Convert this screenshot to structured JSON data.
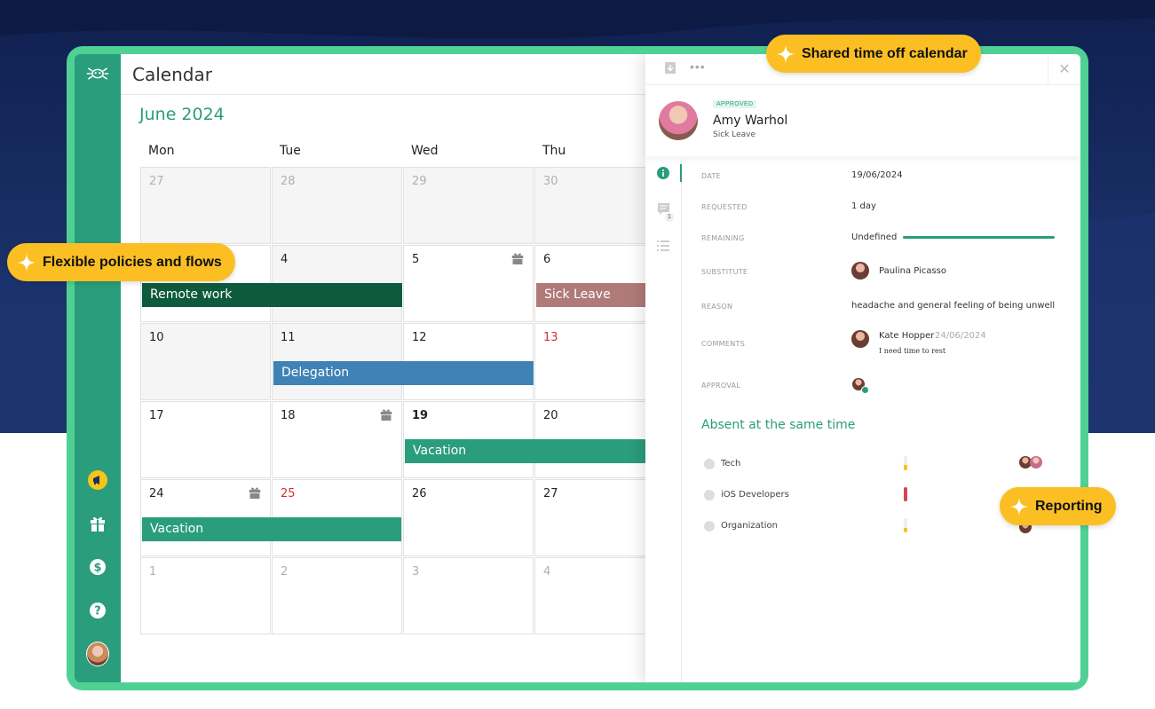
{
  "calendar": {
    "title": "Calendar",
    "month": "June 2024",
    "weekdays": [
      "Mon",
      "Tue",
      "Wed",
      "Thu"
    ],
    "days": [
      [
        "27",
        "28",
        "29",
        "30"
      ],
      [
        "",
        "4",
        "5",
        "6"
      ],
      [
        "10",
        "11",
        "12",
        "13"
      ],
      [
        "17",
        "18",
        "19",
        "20"
      ],
      [
        "24",
        "25",
        "26",
        "27"
      ],
      [
        "1",
        "2",
        "3",
        "4"
      ]
    ],
    "events": {
      "remote_work": "Remote work",
      "sick_leave": "Sick Leave",
      "delegation": "Delegation",
      "vacation_19": "Vacation",
      "vacation_24": "Vacation"
    },
    "event_colors": {
      "remote_work": "#0d5a3e",
      "sick_leave": "#b07a78",
      "delegation": "#3f82b5",
      "vacation": "#2a9d7c"
    }
  },
  "panel": {
    "status_badge": "APPROVED",
    "name": "Amy Warhol",
    "leave_type": "Sick Leave",
    "comment_count": "1",
    "labels": {
      "date": "DATE",
      "requested": "REQUESTED",
      "remaining": "REMAINING",
      "substitute": "SUBSTITUTE",
      "reason": "REASON",
      "comments": "COMMENTS",
      "approval": "APPROVAL"
    },
    "values": {
      "date": "19/06/2024",
      "requested": "1 day",
      "remaining": "Undefined",
      "substitute": "Paulina Picasso",
      "reason": "headache and general feeling of being unwell",
      "comment_author": "Kate Hopper",
      "comment_date": "24/06/2024",
      "comment_text": "I need time to rest"
    },
    "absent_title": "Absent at the same time",
    "teams": [
      {
        "name": "Tech",
        "level": 0.35,
        "color": "#f5c518"
      },
      {
        "name": "iOS Developers",
        "level": 1.0,
        "color": "#d64550"
      },
      {
        "name": "Organization",
        "level": 0.3,
        "color": "#f5c518"
      }
    ]
  },
  "callouts": {
    "shared": "Shared time off calendar",
    "flexible": "Flexible policies and flows",
    "reporting": "Reporting"
  },
  "colors": {
    "brand_green": "#2a9d7c",
    "frame_green": "#4fd193",
    "navy": "#15285c",
    "callout_yellow": "#fbbf24"
  },
  "icons": [
    "logo-icon",
    "megaphone-icon",
    "gift-icon",
    "dollar-icon",
    "help-icon",
    "info-icon",
    "comment-icon",
    "list-icon",
    "download-icon",
    "more-icon",
    "close-icon",
    "sparkle-icon"
  ]
}
